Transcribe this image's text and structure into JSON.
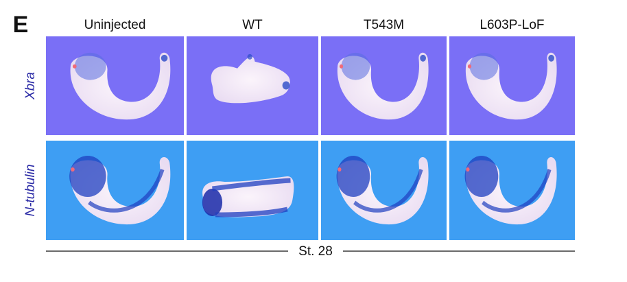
{
  "panel_label": "E",
  "columns": [
    "Uninjected",
    "WT",
    "T543M",
    "L603P-LoF"
  ],
  "rows": [
    "Xbra",
    "N-tubulin"
  ],
  "stage": "St. 28"
}
